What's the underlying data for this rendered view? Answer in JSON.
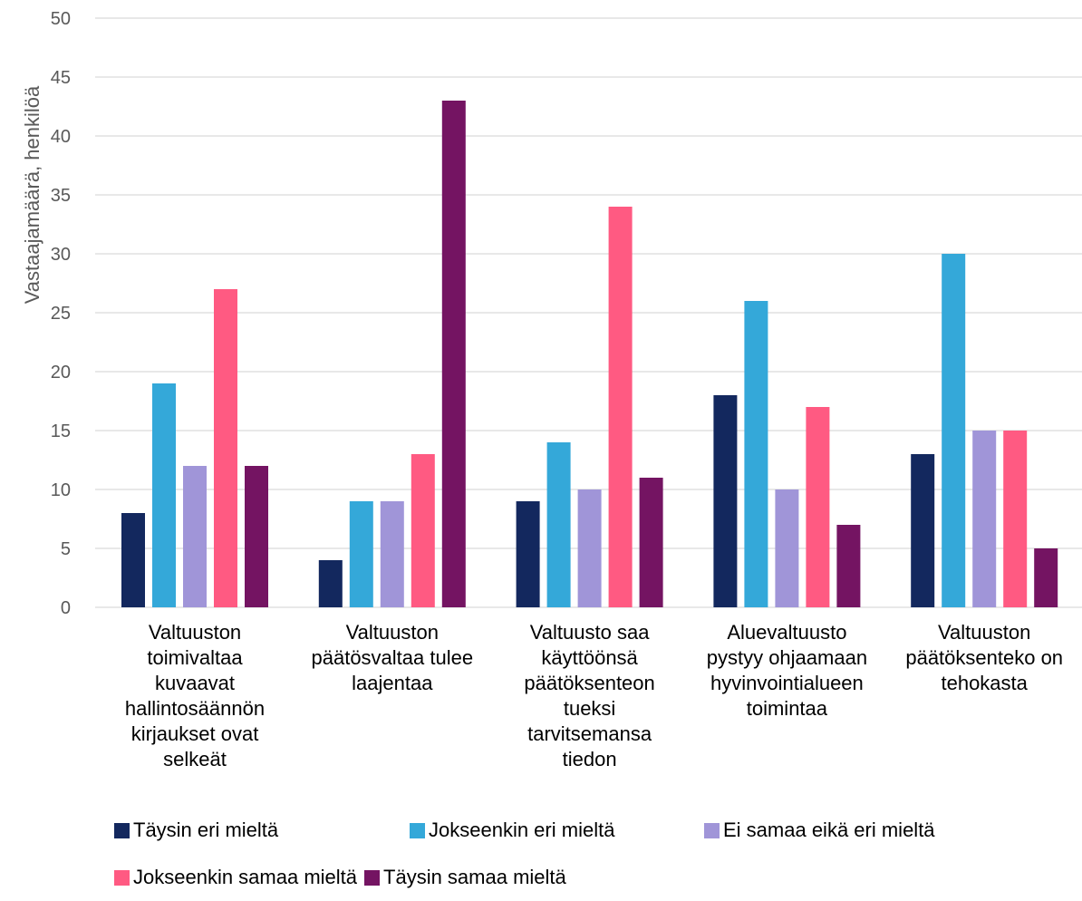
{
  "chart_data": {
    "type": "bar",
    "ylabel": "Vastaajamäärä, henkilöä",
    "ylim": [
      0,
      50
    ],
    "yticks": [
      0,
      5,
      10,
      15,
      20,
      25,
      30,
      35,
      40,
      45,
      50
    ],
    "grid": true,
    "legend_position": "bottom",
    "categories": [
      [
        "Valtuuston",
        "toimivaltaa",
        "kuvaavat",
        "hallintosäännön",
        "kirjaukset ovat",
        "selkeät"
      ],
      [
        "Valtuuston",
        "päätösvaltaa tulee",
        "laajentaa"
      ],
      [
        "Valtuusto saa",
        "käyttöönsä",
        "päätöksenteon",
        "tueksi",
        "tarvitsemansa",
        "tiedon"
      ],
      [
        "Aluevaltuusto",
        "pystyy ohjaamaan",
        "hyvinvointialueen",
        "toimintaa"
      ],
      [
        "Valtuuston",
        "päätöksenteko on",
        "tehokasta"
      ]
    ],
    "series": [
      {
        "name": "Täysin eri mieltä",
        "color": "#13285e",
        "values": [
          8,
          4,
          9,
          18,
          13
        ]
      },
      {
        "name": "Jokseenkin eri mieltä",
        "color": "#34a8d9",
        "values": [
          19,
          9,
          14,
          26,
          30
        ]
      },
      {
        "name": "Ei samaa eikä eri mieltä",
        "color": "#a095d8",
        "values": [
          12,
          9,
          10,
          10,
          15
        ]
      },
      {
        "name": "Jokseenkin samaa mieltä",
        "color": "#ff5a82",
        "values": [
          27,
          13,
          34,
          17,
          15
        ]
      },
      {
        "name": "Täysin samaa mieltä",
        "color": "#741462",
        "values": [
          12,
          43,
          11,
          7,
          5
        ]
      }
    ]
  }
}
